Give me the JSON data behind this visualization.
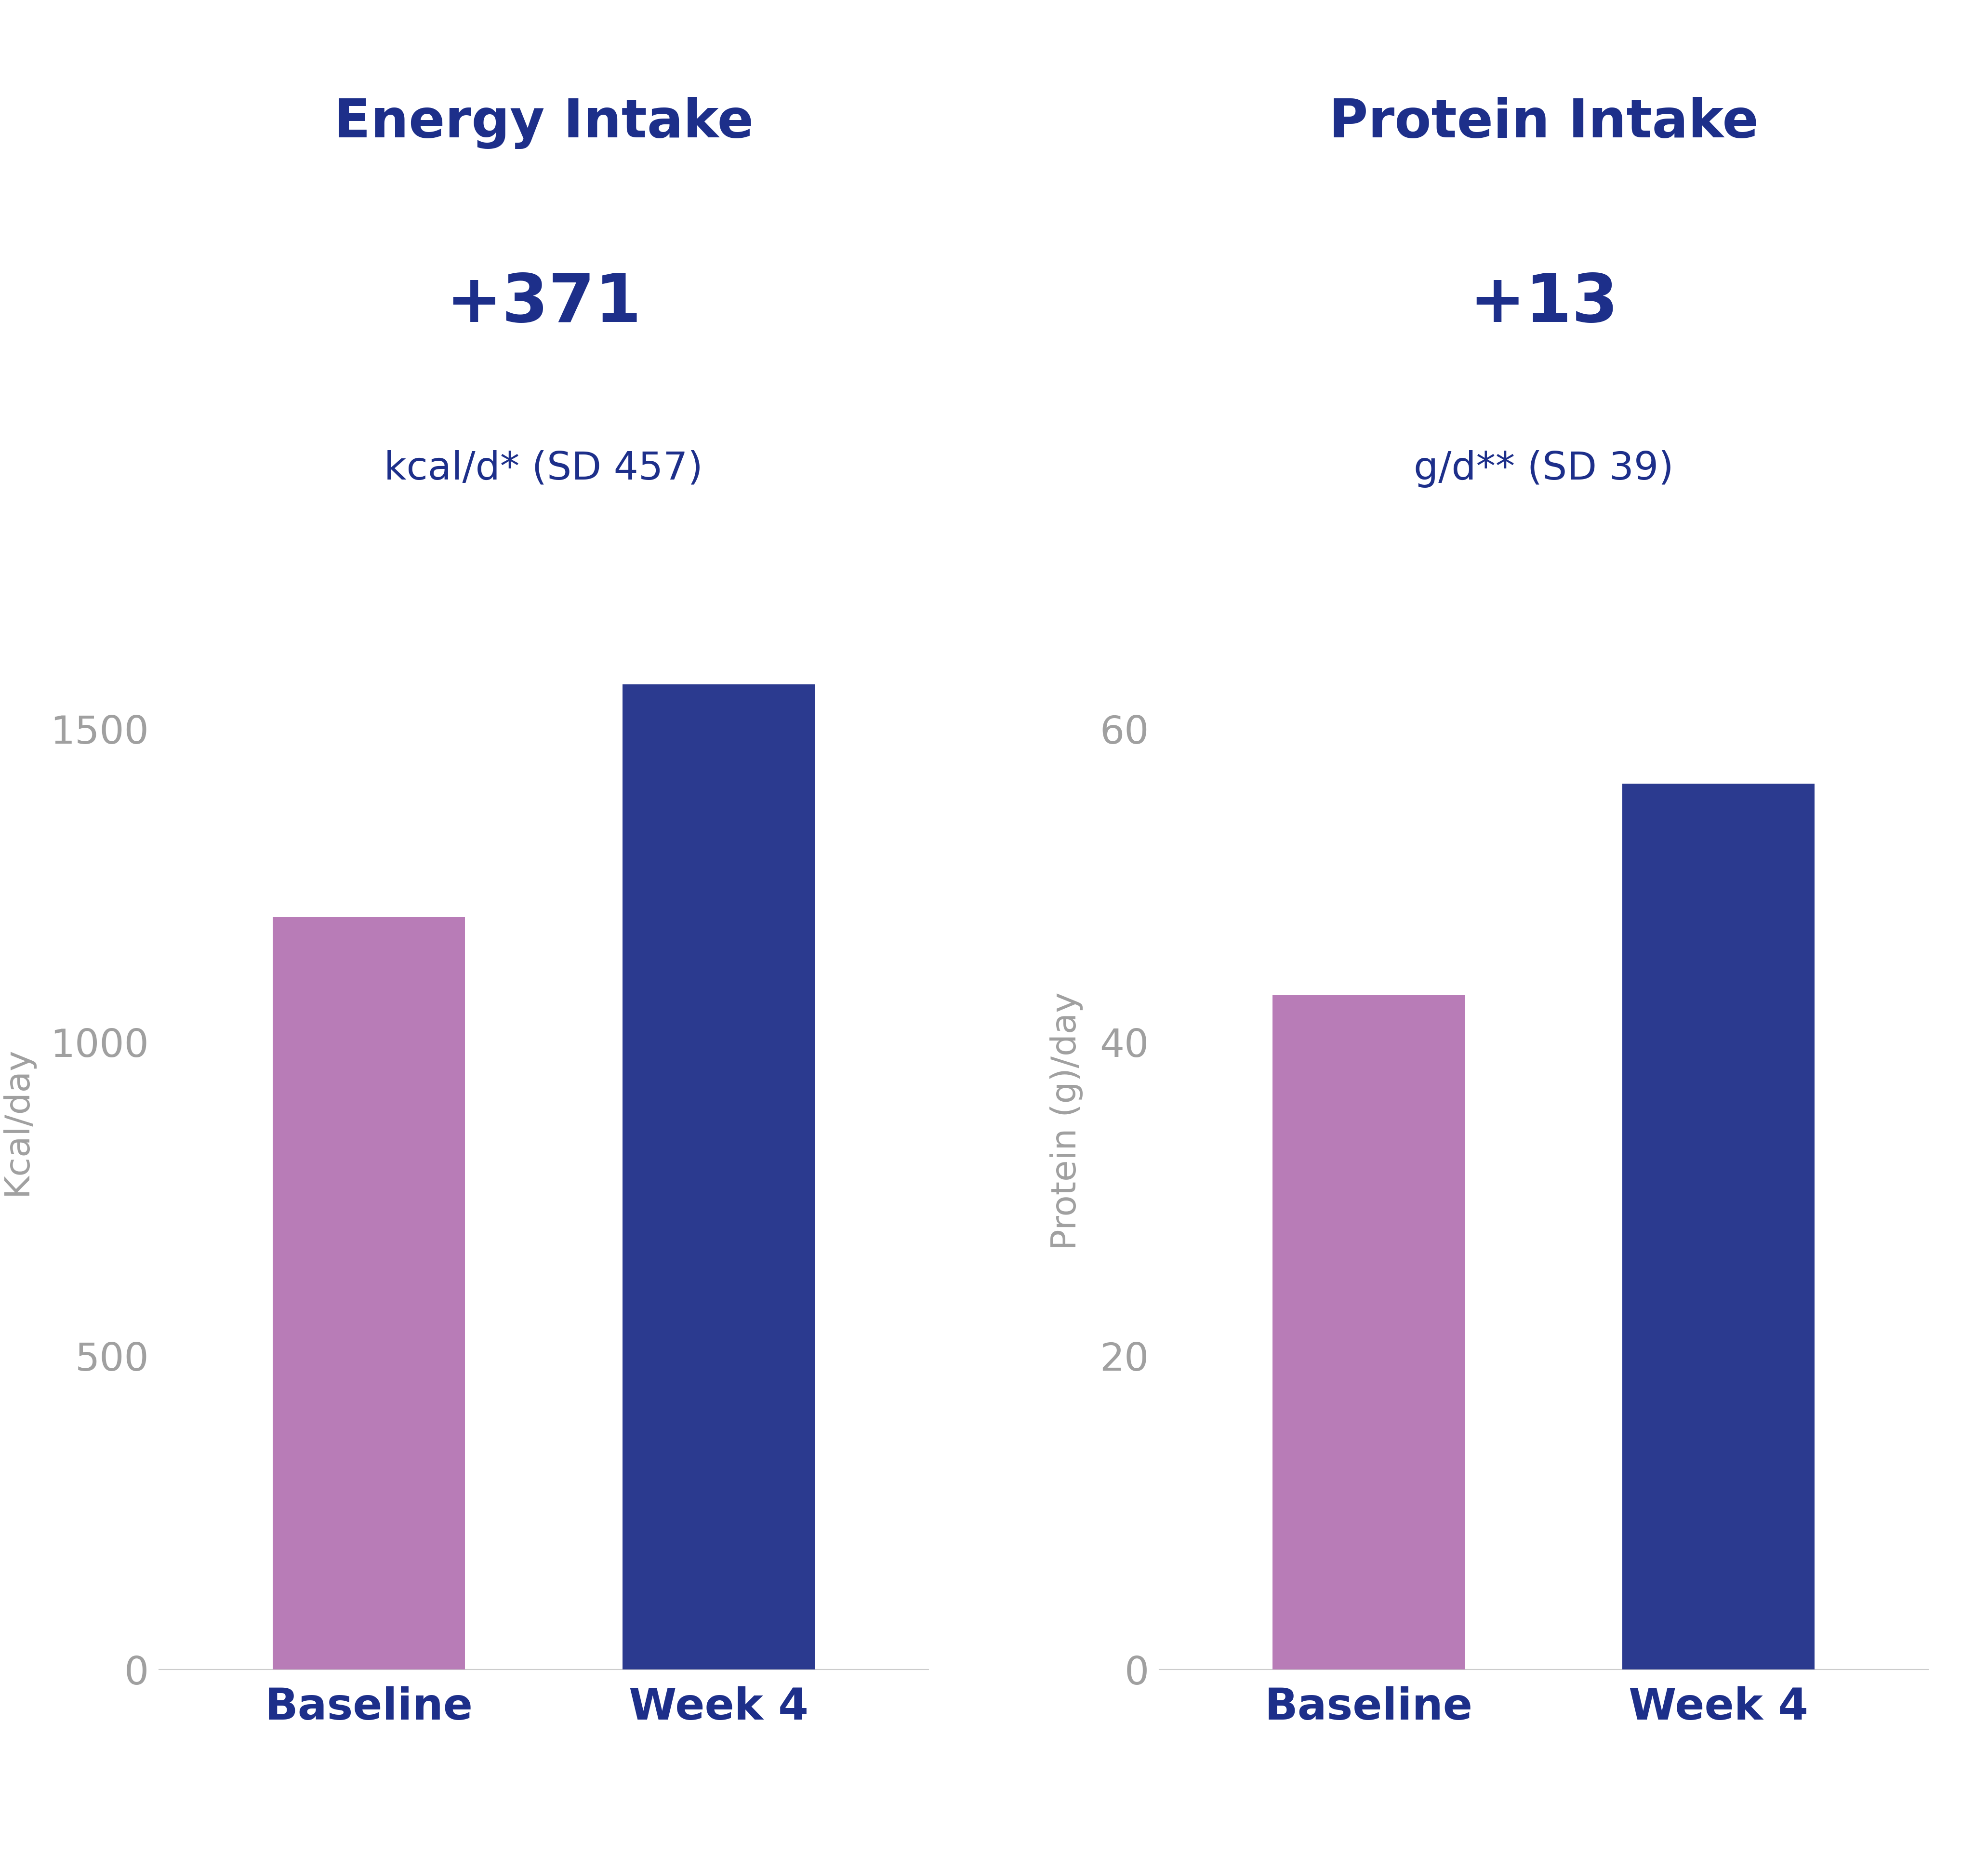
{
  "energy_title": "Energy Intake",
  "protein_title": "Protein Intake",
  "energy_annotation_large": "+371",
  "energy_annotation_small": "kcal/d* (SD 457)",
  "protein_annotation_large": "+13",
  "protein_annotation_small": "g/d** (SD 39)",
  "energy_baseline": 1200,
  "energy_week4": 1571,
  "protein_baseline": 43,
  "protein_week4": 56.5,
  "energy_ylim": [
    0,
    1750
  ],
  "protein_ylim": [
    0,
    70
  ],
  "energy_yticks": [
    0,
    500,
    1000,
    1500
  ],
  "protein_yticks": [
    0,
    20,
    40,
    60
  ],
  "categories": [
    "Baseline",
    "Week 4"
  ],
  "bar_color_baseline": "#b87cb7",
  "bar_color_week4": "#2b3a8f",
  "title_color": "#1d2f8a",
  "tick_label_color": "#a0a0a0",
  "xticklabel_color": "#1d2f8a",
  "annotation_large_color": "#1d2f8a",
  "annotation_small_color": "#1d2f8a",
  "ylabel_color": "#a0a0a0",
  "background_color": "#ffffff",
  "title_fontsize": 80,
  "annotation_large_fontsize": 100,
  "annotation_small_fontsize": 58,
  "tick_fontsize": 58,
  "xlabel_fontsize": 65,
  "ylabel_fontsize": 52,
  "bar_width": 0.55
}
